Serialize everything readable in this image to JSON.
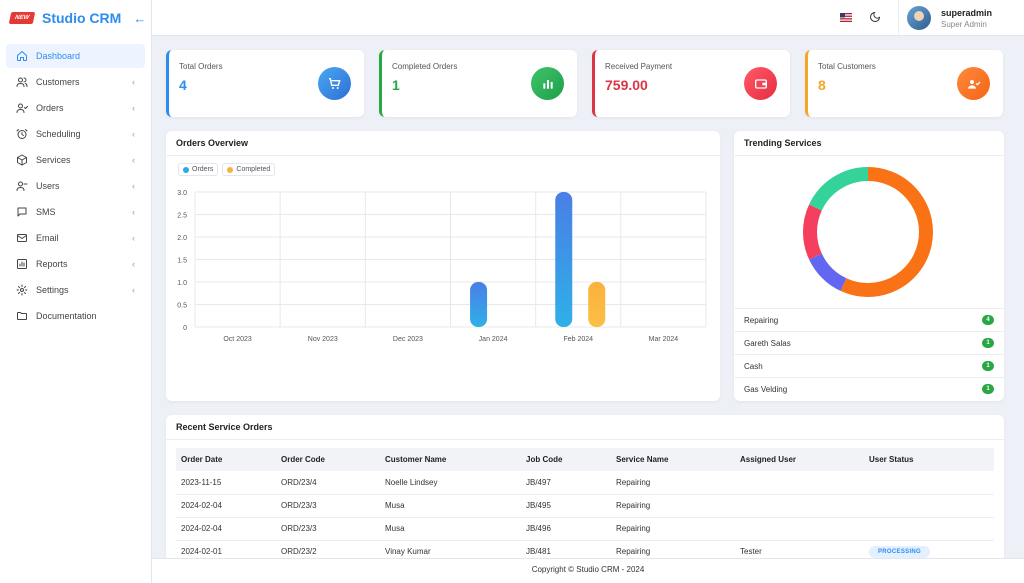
{
  "brand": {
    "badge": "NEW",
    "name": "Studio CRM"
  },
  "nav": [
    {
      "label": "Dashboard",
      "icon": "home-icon",
      "active": true,
      "submenu": false
    },
    {
      "label": "Customers",
      "icon": "users-icon",
      "active": false,
      "submenu": true
    },
    {
      "label": "Orders",
      "icon": "orders-icon",
      "active": false,
      "submenu": true
    },
    {
      "label": "Scheduling",
      "icon": "clock-icon",
      "active": false,
      "submenu": true
    },
    {
      "label": "Services",
      "icon": "box-icon",
      "active": false,
      "submenu": true
    },
    {
      "label": "Users",
      "icon": "user-icon",
      "active": false,
      "submenu": true
    },
    {
      "label": "SMS",
      "icon": "chat-icon",
      "active": false,
      "submenu": true
    },
    {
      "label": "Email",
      "icon": "mail-icon",
      "active": false,
      "submenu": true
    },
    {
      "label": "Reports",
      "icon": "chart-icon",
      "active": false,
      "submenu": true
    },
    {
      "label": "Settings",
      "icon": "gear-icon",
      "active": false,
      "submenu": true
    },
    {
      "label": "Documentation",
      "icon": "folder-icon",
      "active": false,
      "submenu": false
    }
  ],
  "header": {
    "username": "superadmin",
    "role": "Super Admin"
  },
  "stats": [
    {
      "label": "Total Orders",
      "value": "4",
      "color": "#2d8cf0",
      "icon": "cart-icon"
    },
    {
      "label": "Completed Orders",
      "value": "1",
      "color": "#28a745",
      "icon": "bar-chart-icon"
    },
    {
      "label": "Received Payment",
      "value": "759.00",
      "color": "#dc3545",
      "icon": "wallet-icon"
    },
    {
      "label": "Total Customers",
      "value": "8",
      "color": "#f5a623",
      "icon": "customers-icon"
    }
  ],
  "orders_overview": {
    "title": "Orders Overview",
    "legend": [
      {
        "label": "Orders",
        "color": "#2fa8e8"
      },
      {
        "label": "Completed",
        "color": "#fbb13c"
      }
    ]
  },
  "chart_data": {
    "type": "bar",
    "categories": [
      "Oct 2023",
      "Nov 2023",
      "Dec 2023",
      "Jan 2024",
      "Feb 2024",
      "Mar 2024"
    ],
    "series": [
      {
        "name": "Orders",
        "values": [
          0,
          0,
          0,
          1,
          3,
          0
        ]
      },
      {
        "name": "Completed",
        "values": [
          0,
          0,
          0,
          0,
          1,
          0
        ]
      }
    ],
    "ylim": [
      0,
      3
    ],
    "yticks": [
      "0",
      "0.5",
      "1.0",
      "1.5",
      "2.0",
      "2.5",
      "3.0"
    ],
    "title": "",
    "xlabel": "",
    "ylabel": "",
    "grid": true,
    "legend": "top-left"
  },
  "trending": {
    "title": "Trending Services",
    "items": [
      {
        "label": "Repairing",
        "count": "4"
      },
      {
        "label": "Gareth Salas",
        "count": "1"
      },
      {
        "label": "Cash",
        "count": "1"
      },
      {
        "label": "Gas Velding",
        "count": "1"
      }
    ],
    "donut_colors": [
      "#f97316",
      "#6366f1",
      "#f43f5e",
      "#34d399"
    ]
  },
  "recent_orders": {
    "title": "Recent Service Orders",
    "columns": [
      "Order Date",
      "Order Code",
      "Customer Name",
      "Job Code",
      "Service Name",
      "Assigned User",
      "User Status"
    ],
    "rows": [
      [
        "2023-11-15",
        "ORD/23/4",
        "Noelle Lindsey",
        "JB/497",
        "Repairing",
        "",
        ""
      ],
      [
        "2024-02-04",
        "ORD/23/3",
        "Musa",
        "JB/495",
        "Repairing",
        "",
        ""
      ],
      [
        "2024-02-04",
        "ORD/23/3",
        "Musa",
        "JB/496",
        "Repairing",
        "",
        ""
      ],
      [
        "2024-02-01",
        "ORD/23/2",
        "Vinay Kumar",
        "JB/481",
        "Repairing",
        "Tester",
        "PROCESSING"
      ]
    ]
  },
  "footer": {
    "text": "Copyright © Studio CRM - 2024"
  }
}
